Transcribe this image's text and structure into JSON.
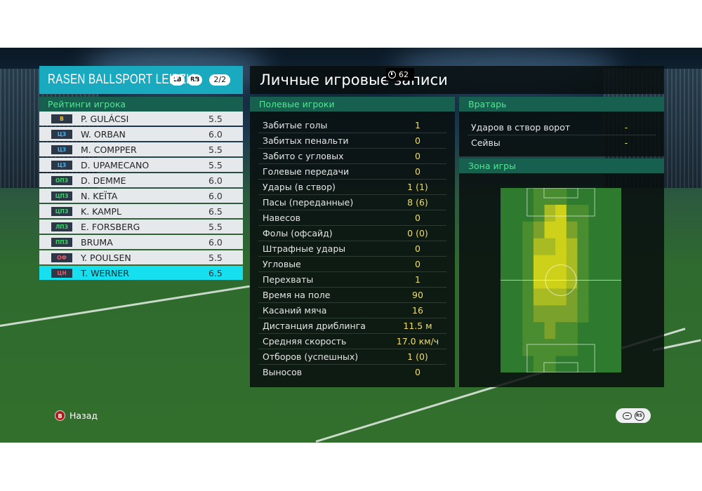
{
  "team": {
    "name": "RASEN BALLSPORT LEIPZIG",
    "lb": "LB",
    "rb": "RB",
    "page": "2/2"
  },
  "ratings_title": "Рейтинги игрока",
  "players": [
    {
      "pos": "В",
      "pos_color": "#f0c030",
      "name": "P. GULÁCSI",
      "rating": "5.5",
      "selected": false
    },
    {
      "pos": "ЦЗ",
      "pos_color": "#46b6f0",
      "name": "W. ORBAN",
      "rating": "6.0",
      "selected": false
    },
    {
      "pos": "ЦЗ",
      "pos_color": "#46b6f0",
      "name": "M. COMPPER",
      "rating": "5.5",
      "selected": false
    },
    {
      "pos": "ЦЗ",
      "pos_color": "#46b6f0",
      "name": "D. UPAMECANO",
      "rating": "5.5",
      "selected": false
    },
    {
      "pos": "ОПЗ",
      "pos_color": "#3ed66a",
      "name": "D. DEMME",
      "rating": "6.0",
      "selected": false
    },
    {
      "pos": "ЦПЗ",
      "pos_color": "#3ed66a",
      "name": "N. KEÏTA",
      "rating": "6.0",
      "selected": false
    },
    {
      "pos": "ЦПЗ",
      "pos_color": "#3ed66a",
      "name": "K. KAMPL",
      "rating": "6.5",
      "selected": false
    },
    {
      "pos": "ЛПЗ",
      "pos_color": "#3ed66a",
      "name": "E. FORSBERG",
      "rating": "5.5",
      "selected": false
    },
    {
      "pos": "ППЗ",
      "pos_color": "#3ed66a",
      "name": "BRUMA",
      "rating": "6.0",
      "selected": false
    },
    {
      "pos": "ОФ",
      "pos_color": "#f05a6a",
      "name": "Y. POULSEN",
      "rating": "5.5",
      "selected": false
    },
    {
      "pos": "ЦН",
      "pos_color": "#f05a6a",
      "name": "T. WERNER",
      "rating": "6.5",
      "selected": true
    }
  ],
  "main_title": "Личные игровые записи",
  "timer": "62",
  "field_players": {
    "title": "Полевые игроки",
    "stats": [
      {
        "label": "Забитые голы",
        "value": "1"
      },
      {
        "label": "Забитых пенальти",
        "value": "0"
      },
      {
        "label": "Забито с угловых",
        "value": "0"
      },
      {
        "label": "Голевые передачи",
        "value": "0"
      },
      {
        "label": "Удары (в створ)",
        "value": "1 (1)"
      },
      {
        "label": "Пасы (переданные)",
        "value": "8 (6)"
      },
      {
        "label": "Навесов",
        "value": "0"
      },
      {
        "label": "Фолы (офсайд)",
        "value": "0 (0)"
      },
      {
        "label": "Штрафные удары",
        "value": "0"
      },
      {
        "label": "Угловые",
        "value": "0"
      },
      {
        "label": "Перехваты",
        "value": "1"
      },
      {
        "label": "Время на поле",
        "value": "90"
      },
      {
        "label": "Касаний мяча",
        "value": "16"
      },
      {
        "label": "Дистанция дриблинга",
        "value": "11.5 м"
      },
      {
        "label": "Средняя скорость",
        "value": "17.0 км/ч"
      },
      {
        "label": "Отборов (успешных)",
        "value": "1 (0)"
      },
      {
        "label": "Выносов",
        "value": "0"
      }
    ]
  },
  "goalkeeper": {
    "title": "Вратарь",
    "stats": [
      {
        "label": "Ударов в створ ворот",
        "value": "-"
      },
      {
        "label": "Сейвы",
        "value": "-"
      }
    ]
  },
  "zone": {
    "title": "Зона игры",
    "heat_rows": [
      [
        0,
        0,
        0,
        1,
        1,
        1,
        0,
        0,
        0,
        0,
        0
      ],
      [
        0,
        0,
        0,
        1,
        3,
        4,
        1,
        1,
        0,
        0,
        0
      ],
      [
        0,
        0,
        1,
        2,
        4,
        4,
        2,
        1,
        0,
        0,
        0
      ],
      [
        0,
        0,
        1,
        3,
        3,
        4,
        3,
        1,
        0,
        0,
        0
      ],
      [
        0,
        0,
        1,
        4,
        4,
        4,
        3,
        1,
        0,
        0,
        0
      ],
      [
        0,
        0,
        1,
        4,
        4,
        4,
        3,
        1,
        0,
        0,
        0
      ],
      [
        0,
        0,
        1,
        3,
        3,
        3,
        2,
        1,
        0,
        0,
        0
      ],
      [
        0,
        0,
        1,
        2,
        2,
        2,
        2,
        1,
        0,
        0,
        0
      ],
      [
        0,
        0,
        1,
        1,
        2,
        1,
        1,
        0,
        0,
        0,
        0
      ],
      [
        0,
        0,
        1,
        1,
        1,
        1,
        1,
        0,
        0,
        0,
        0
      ],
      [
        0,
        0,
        0,
        1,
        1,
        0,
        0,
        0,
        0,
        0,
        0
      ]
    ]
  },
  "footer": {
    "back_button_key": "B",
    "back_label": "Назад",
    "rs_label": "RS"
  }
}
